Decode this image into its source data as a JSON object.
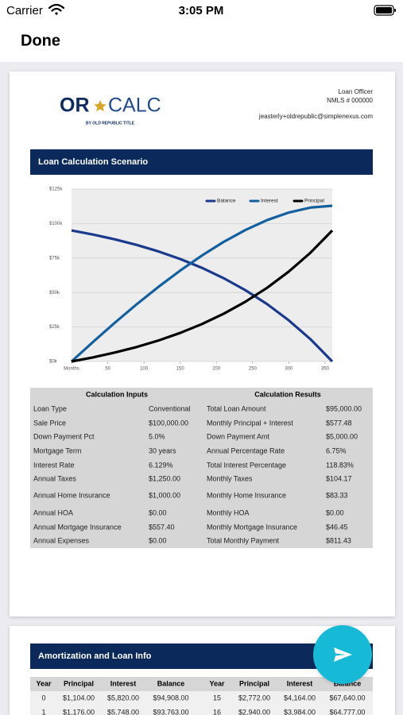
{
  "status_bar": {
    "carrier": "Carrier",
    "time": "3:05 PM"
  },
  "nav": {
    "done": "Done"
  },
  "header": {
    "logo_left": "OR",
    "logo_right": "CALC",
    "logo_sub": "BY OLD REPUBLIC TITLE",
    "officer": "Loan Officer",
    "nmls": "NMLS # 000000",
    "email": "jeasterly+oldrepublic@simplenexus.com"
  },
  "section1_title": "Loan Calculation Scenario",
  "chart_data": {
    "type": "line",
    "x": [
      0,
      30,
      60,
      90,
      120,
      150,
      180,
      210,
      240,
      270,
      300,
      330,
      360
    ],
    "series": [
      {
        "name": "Balance",
        "color": "#1c3a8c",
        "values": [
          95000,
          92000,
          88500,
          84500,
          79800,
          74300,
          67900,
          60400,
          51700,
          41600,
          29800,
          16100,
          0
        ]
      },
      {
        "name": "Interest",
        "color": "#14609f",
        "values": [
          0,
          14300,
          28200,
          41500,
          54100,
          65900,
          76800,
          86700,
          95300,
          102500,
          108000,
          111600,
          112900
        ]
      },
      {
        "name": "Principal",
        "color": "#000000",
        "values": [
          0,
          3000,
          6500,
          10500,
          15200,
          20700,
          27100,
          34600,
          43300,
          53400,
          65200,
          78900,
          95000
        ]
      }
    ],
    "xlim": [
      0,
      360
    ],
    "ylim": [
      0,
      125000
    ],
    "xticks": [
      {
        "value": 0,
        "label": "Months"
      },
      50,
      100,
      150,
      200,
      250,
      300,
      350
    ],
    "yticks": [
      {
        "value": 0,
        "label": "$0k"
      },
      {
        "value": 25000,
        "label": "$25k"
      },
      {
        "value": 50000,
        "label": "$50k"
      },
      {
        "value": 75000,
        "label": "$75k"
      },
      {
        "value": 100000,
        "label": "$100k"
      },
      {
        "value": 125000,
        "label": "$125k"
      }
    ],
    "grid": true,
    "legend": "top-right"
  },
  "calc_table": {
    "headers": [
      "Calculation Inputs",
      "Calculation Results"
    ],
    "rows": [
      [
        "Loan Type",
        "Conventional",
        "Total Loan Amount",
        "$95,000.00"
      ],
      [
        "Sale Price",
        "$100,000.00",
        "Monthly Principal + Interest",
        "$577.48"
      ],
      [
        "Down Payment Pct",
        "5.0%",
        "Down Payment Amt",
        "$5,000.00"
      ],
      [
        "Mortgage Term",
        "30 years",
        "Annual Percentage Rate",
        "6.75%"
      ],
      [
        "Interest Rate",
        "6.129%",
        "Total Interest Percentage",
        "118.83%"
      ],
      [
        "Annual Taxes",
        "$1,250.00",
        "Monthly Taxes",
        "$104.17"
      ],
      [
        "Annual Home Insurance",
        "$1,000.00",
        "Monthly Home Insurance",
        "$83.33"
      ],
      [
        "Annual HOA",
        "$0.00",
        "Monthly HOA",
        "$0.00"
      ],
      [
        "Annual Mortgage Insurance",
        "$557.40",
        "Monthly Mortgage Insurance",
        "$46.45"
      ],
      [
        "Annual Expenses",
        "$0.00",
        "Total Monthly Payment",
        "$811.43"
      ]
    ]
  },
  "section2_title": "Amortization and Loan Info",
  "amortization_table": {
    "headers": [
      "Year",
      "Principal",
      "Interest",
      "Balance",
      "Year",
      "Principal",
      "Interest",
      "Balance"
    ],
    "rows": [
      [
        "0",
        "$1,104.00",
        "$5,820.00",
        "$94,908.00",
        "15",
        "$2,772.00",
        "$4,164.00",
        "$67,640.00"
      ],
      [
        "1",
        "$1,176.00",
        "$5,748.00",
        "$93,763.00",
        "16",
        "$2,940.00",
        "$3,984.00",
        "$64,777.00"
      ]
    ]
  }
}
